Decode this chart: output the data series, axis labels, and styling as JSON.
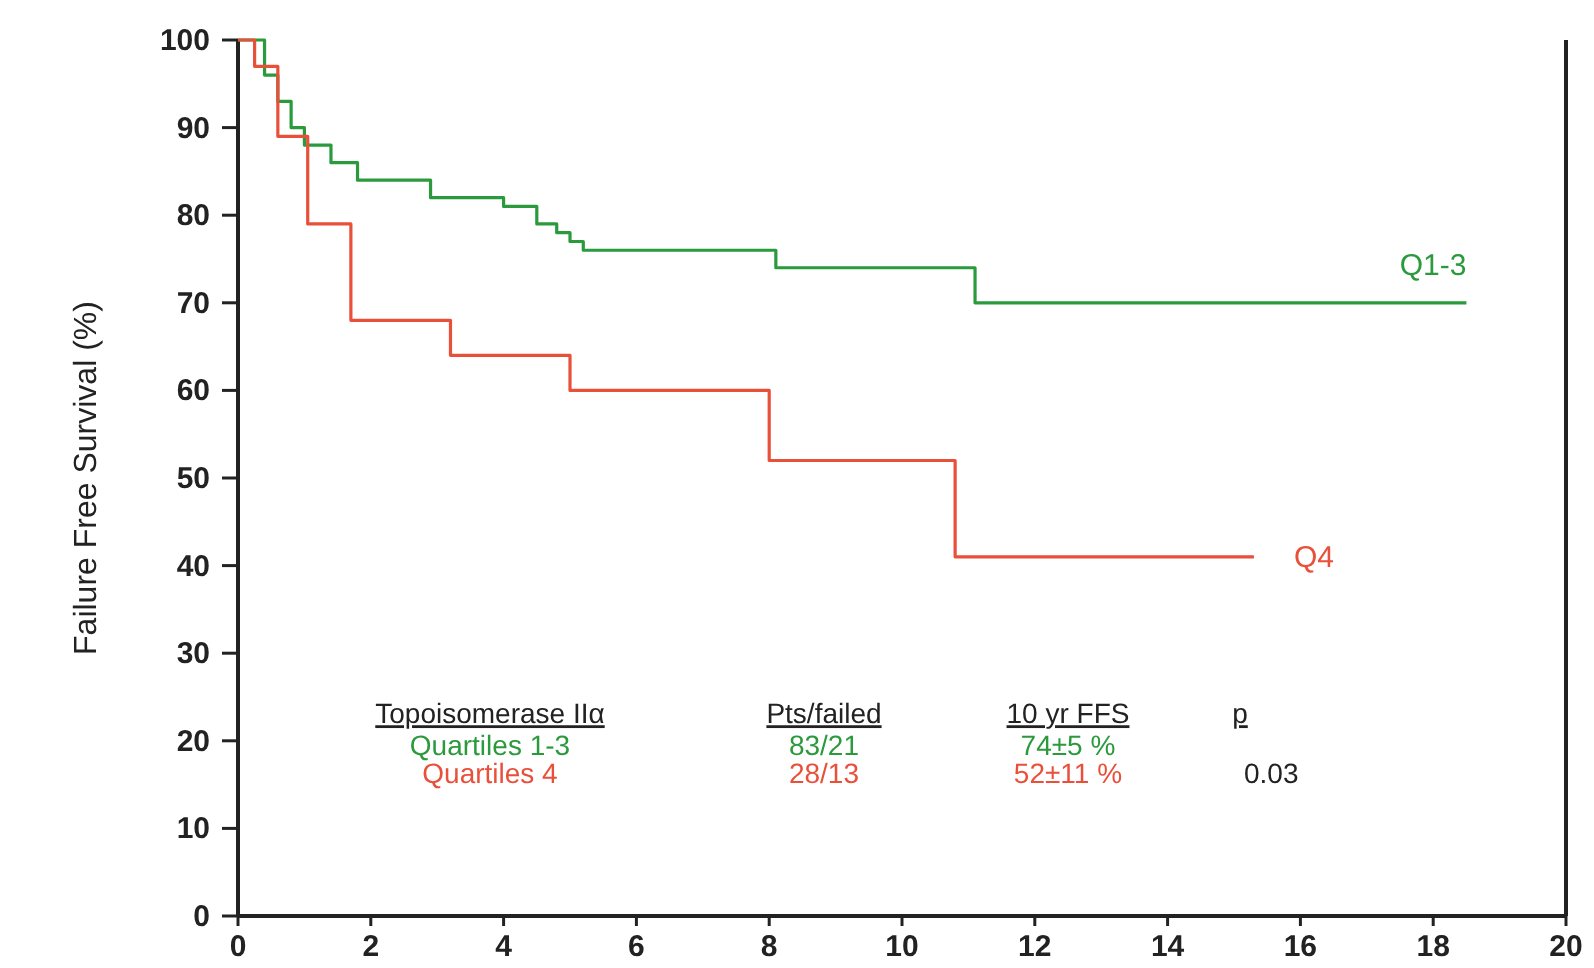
{
  "chart_data": {
    "type": "step",
    "xlabel": null,
    "ylabel": "Failure Free Survival (%)",
    "xlim": [
      0,
      20
    ],
    "xticks": [
      0,
      2,
      4,
      6,
      8,
      10,
      12,
      14,
      16,
      18,
      20
    ],
    "ylim": [
      0,
      100
    ],
    "yticks": [
      0,
      10,
      20,
      30,
      40,
      50,
      60,
      70,
      80,
      90,
      100
    ],
    "series": [
      {
        "name": "Q1-3",
        "color": "#2a9a3c",
        "x": [
          0,
          0.4,
          0.6,
          0.8,
          1.0,
          1.4,
          1.8,
          2.9,
          4.0,
          4.5,
          4.8,
          5.0,
          5.2,
          8.1,
          11.1,
          18.5
        ],
        "values": [
          100,
          96,
          93,
          90,
          88,
          86,
          84,
          82,
          81,
          79,
          78,
          77,
          76,
          74,
          70,
          70
        ]
      },
      {
        "name": "Q4",
        "color": "#e8503a",
        "x": [
          0,
          0.25,
          0.6,
          1.05,
          1.7,
          3.2,
          5.0,
          8.0,
          10.8,
          15.3
        ],
        "values": [
          100,
          97,
          89,
          79,
          68,
          64,
          60,
          52,
          41,
          41
        ]
      }
    ],
    "annotations": [
      "Topoisomerase IIα",
      "Pts/failed",
      "10 yr FFS",
      "p",
      "Quartiles 1-3",
      "83/21",
      "74±5 %",
      "Quartiles 4",
      "28/13",
      "52±11 %",
      "0.03"
    ]
  }
}
